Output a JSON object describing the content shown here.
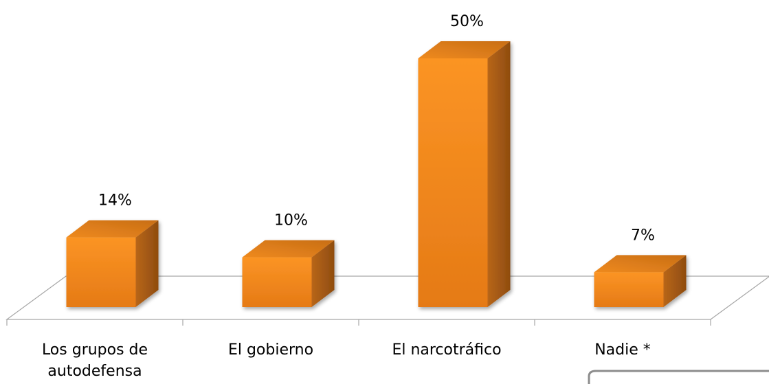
{
  "chart_data": {
    "type": "bar",
    "style": "3d-column",
    "categories": [
      [
        "Los grupos de",
        "autodefensa"
      ],
      [
        "El gobierno"
      ],
      [
        "El narcotráfico"
      ],
      [
        "Nadie *"
      ]
    ],
    "values": [
      14,
      10,
      50,
      7
    ],
    "value_labels": [
      "14%",
      "10%",
      "50%",
      "7%"
    ],
    "ylim": [
      0,
      50
    ],
    "grid": false,
    "legend": "none",
    "colors": {
      "bar_front": "#f7901e",
      "bar_front_dark": "#e07818",
      "bar_top": "#e0801c",
      "bar_side": "#a55a12",
      "floor_line": "#a6a6a6",
      "text": "#000000"
    }
  }
}
